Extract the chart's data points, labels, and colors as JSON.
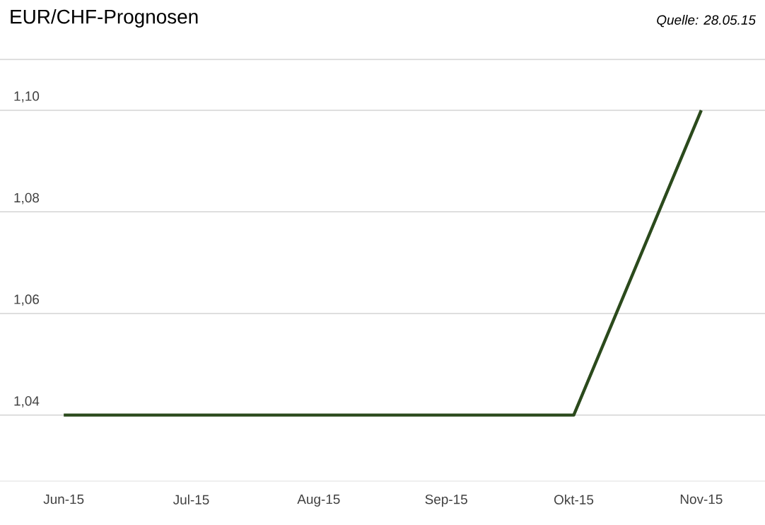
{
  "chart_data": {
    "type": "line",
    "title": "EUR/CHF-Prognosen",
    "annotations": [
      "Quelle: 28.05.15"
    ],
    "categories": [
      "Jun-15",
      "Jul-15",
      "Aug-15",
      "Sep-15",
      "Okt-15",
      "Nov-15"
    ],
    "series": [
      {
        "color": "#2b4a1c",
        "values": [
          1.04,
          1.04,
          1.04,
          1.04,
          1.04,
          1.1
        ]
      }
    ],
    "ylim": [
      1.027,
      1.11
    ],
    "yticks": [
      {
        "value": 1.04,
        "label": "1,04"
      },
      {
        "value": 1.06,
        "label": "1,06"
      },
      {
        "value": 1.08,
        "label": "1,08"
      },
      {
        "value": 1.1,
        "label": "1,10"
      }
    ],
    "grid": "y",
    "marker": "none",
    "line_style": "solid"
  }
}
